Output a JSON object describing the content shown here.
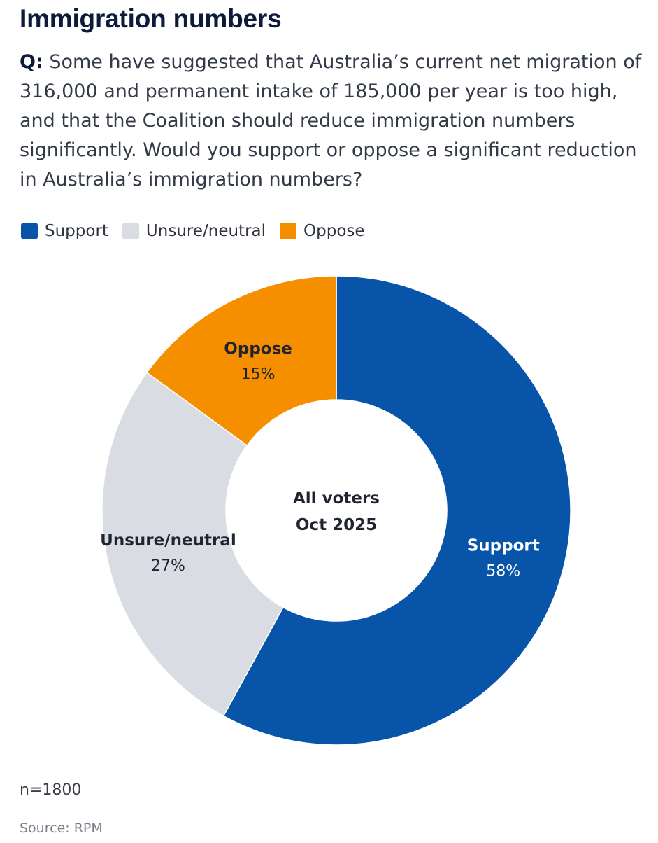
{
  "title": "Immigration numbers",
  "question_label": "Q:",
  "question_text": "Some have suggested that Australia’s current net migration of 316,000 and permanent intake of 185,000 per year is too high, and that the Coalition should reduce immigration numbers significantly. Would you support or oppose a significant reduction in Australia’s immigration numbers?",
  "legend": [
    {
      "label": "Support",
      "color": "#0754a8"
    },
    {
      "label": "Unsure/neutral",
      "color": "#d9dce3"
    },
    {
      "label": "Oppose",
      "color": "#f58f00"
    }
  ],
  "chart_data": {
    "type": "pie",
    "variant": "donut",
    "center_label": [
      "All voters",
      "Oct 2025"
    ],
    "slices": [
      {
        "label": "Support",
        "value": 58,
        "display": "58%",
        "color": "#0754a8",
        "label_color": "#ffffff"
      },
      {
        "label": "Unsure/neutral",
        "value": 27,
        "display": "27%",
        "color": "#d9dce3",
        "label_color": "#1f2430"
      },
      {
        "label": "Oppose",
        "value": 15,
        "display": "15%",
        "color": "#f58f00",
        "label_color": "#1f2430"
      }
    ]
  },
  "note": "n=1800",
  "source": "Source: RPM"
}
